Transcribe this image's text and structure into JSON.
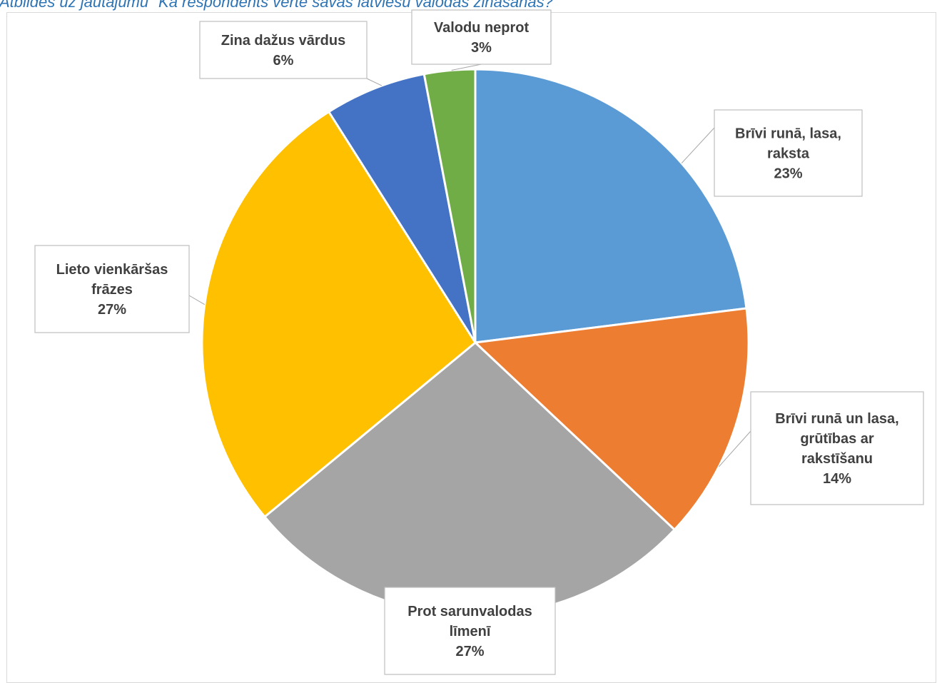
{
  "caption": "Atbildes uz jautājumu \"Kā respondents vērtē savas latviešu valodas zināšanas?\"",
  "chart_data": {
    "type": "pie",
    "categories": [
      "Brīvi runā, lasa, raksta",
      "Brīvi runā un lasa, grūtības ar rakstīšanu",
      "Prot sarunvalodas līmenī",
      "Lieto vienkāršas frāzes",
      "Zina dažus vārdus",
      "Valodu neprot"
    ],
    "values": [
      23,
      14,
      27,
      27,
      6,
      3
    ],
    "value_suffix": "%",
    "colors": [
      "#5b9bd5",
      "#ed7d31",
      "#a5a5a5",
      "#ffc000",
      "#4472c4",
      "#70ad47"
    ],
    "labels": [
      {
        "lines": [
          "Brīvi runā, lasa,",
          "raksta"
        ],
        "pct": "23%"
      },
      {
        "lines": [
          "Brīvi runā un lasa,",
          "grūtības ar",
          "rakstīšanu"
        ],
        "pct": "14%"
      },
      {
        "lines": [
          "Prot sarunvalodas",
          "līmenī"
        ],
        "pct": "27%"
      },
      {
        "lines": [
          "Lieto vienkāršas",
          "frāzes"
        ],
        "pct": "27%"
      },
      {
        "lines": [
          "Zina dažus vārdus"
        ],
        "pct": "6%"
      },
      {
        "lines": [
          "Valodu neprot"
        ],
        "pct": "3%"
      }
    ],
    "start_angle_deg": 0,
    "direction": "clockwise",
    "legend": "none"
  }
}
